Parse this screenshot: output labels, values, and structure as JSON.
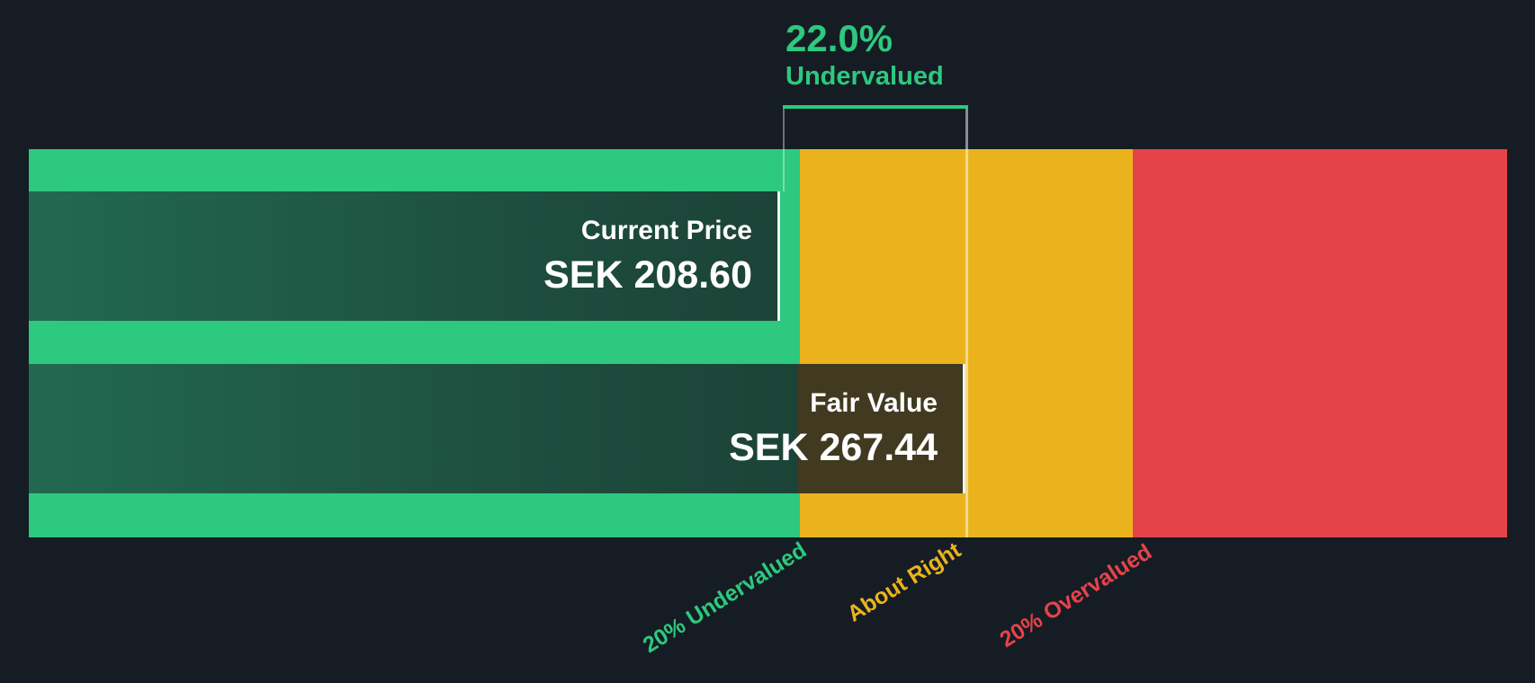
{
  "gauge": {
    "discount": {
      "percent": "22.0%",
      "label": "Undervalued"
    },
    "current_price": {
      "label": "Current Price",
      "value": "SEK 208.60"
    },
    "fair_value": {
      "label": "Fair Value",
      "value": "SEK 267.44"
    },
    "zone_labels": {
      "undervalued": "20% Undervalued",
      "about_right": "About Right",
      "overvalued": "20% Overvalued"
    },
    "colors": {
      "background": "#151c24",
      "undervalued_zone": "#2dc97e",
      "about_right_zone": "#eab31e",
      "overvalued_zone": "#e4434a",
      "price_bar_gradient_left": "#226951",
      "price_bar_gradient_right": "#1c4337",
      "fair_value_box": "#423a20",
      "text": "#ffffff"
    }
  },
  "chart_data": {
    "type": "valuation-gauge",
    "currency": "SEK",
    "current_price": 208.6,
    "fair_value": 267.44,
    "discount_percent": 22.0,
    "valuation_status": "Undervalued",
    "series": [
      {
        "name": "Current Price",
        "value": 208.6
      },
      {
        "name": "Fair Value",
        "value": 267.44
      }
    ],
    "zones": [
      {
        "label": "20% Undervalued",
        "color": "#2dc97e"
      },
      {
        "label": "About Right",
        "color": "#eab31e"
      },
      {
        "label": "20% Overvalued",
        "color": "#e4434a"
      }
    ],
    "legend_position": "bottom-rotated",
    "grid": false
  }
}
